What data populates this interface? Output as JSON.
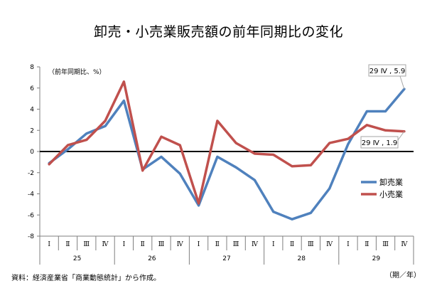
{
  "page_title": "卸売・小売業販売額の前年同期比の変化",
  "source_note": "資料：経済産業省「商業動態統計」から作成。",
  "x_unit": "（期／年）",
  "chart_data": {
    "type": "line",
    "title": "卸売・小売業販売額の前年同期比の変化",
    "ylabel": "（前年同期比、%）",
    "ylim": [
      -8,
      8
    ],
    "yticks": [
      -8,
      -6,
      -4,
      -2,
      0,
      2,
      4,
      6,
      8
    ],
    "grid": false,
    "legend_position": "right",
    "categories": [
      "Ⅰ",
      "Ⅱ",
      "Ⅲ",
      "Ⅳ",
      "Ⅰ",
      "Ⅱ",
      "Ⅲ",
      "Ⅳ",
      "Ⅰ",
      "Ⅱ",
      "Ⅲ",
      "Ⅳ",
      "Ⅰ",
      "Ⅱ",
      "Ⅲ",
      "Ⅳ",
      "Ⅰ",
      "Ⅱ",
      "Ⅲ",
      "Ⅳ"
    ],
    "groups": [
      {
        "label": "25",
        "start": 0,
        "count": 4
      },
      {
        "label": "26",
        "start": 4,
        "count": 4
      },
      {
        "label": "27",
        "start": 8,
        "count": 4
      },
      {
        "label": "28",
        "start": 12,
        "count": 4
      },
      {
        "label": "29",
        "start": 16,
        "count": 4
      }
    ],
    "series": [
      {
        "name": "卸売業",
        "color": "#4F81BD",
        "values": [
          -1.1,
          0.2,
          1.7,
          2.4,
          4.8,
          -1.7,
          -0.5,
          -2.1,
          -5.1,
          -0.5,
          -1.5,
          -2.7,
          -5.7,
          -6.4,
          -5.8,
          -3.5,
          0.7,
          3.8,
          3.8,
          5.9
        ]
      },
      {
        "name": "小売業",
        "color": "#C0504D",
        "values": [
          -1.2,
          0.6,
          1.1,
          2.9,
          6.6,
          -1.8,
          1.4,
          0.6,
          -4.9,
          2.9,
          0.8,
          -0.2,
          -0.3,
          -1.4,
          -1.3,
          0.8,
          1.2,
          2.5,
          2.0,
          1.9
        ]
      }
    ],
    "annotations": [
      {
        "series": 0,
        "index": 19,
        "text": "29 Ⅳ , 5.9"
      },
      {
        "series": 1,
        "index": 19,
        "text": "29 Ⅳ , 1.9"
      }
    ]
  }
}
